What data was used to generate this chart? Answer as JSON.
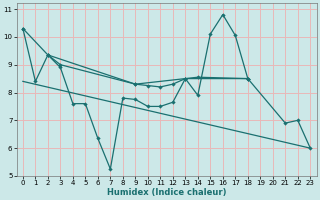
{
  "xlabel": "Humidex (Indice chaleur)",
  "background_color": "#cce8e8",
  "grid_color": "#e8b8b8",
  "line_color": "#1a7070",
  "xlim": [
    -0.5,
    23.5
  ],
  "ylim": [
    5,
    11.2
  ],
  "yticks": [
    5,
    6,
    7,
    8,
    9,
    10,
    11
  ],
  "xticks": [
    0,
    1,
    2,
    3,
    4,
    5,
    6,
    7,
    8,
    9,
    10,
    11,
    12,
    13,
    14,
    15,
    16,
    17,
    18,
    19,
    20,
    21,
    22,
    23
  ],
  "line1_x": [
    0,
    1,
    2,
    3,
    4,
    5,
    6,
    7,
    8,
    9,
    10,
    11,
    12,
    13,
    14,
    15,
    16,
    17,
    18
  ],
  "line1_y": [
    10.3,
    8.4,
    9.35,
    8.9,
    7.6,
    7.6,
    6.35,
    5.25,
    7.8,
    7.75,
    7.5,
    7.5,
    7.65,
    8.5,
    7.9,
    10.1,
    10.8,
    10.05,
    8.5
  ],
  "line2_x": [
    2,
    3,
    9,
    10,
    11,
    12,
    13,
    14,
    18
  ],
  "line2_y": [
    9.35,
    9.0,
    8.3,
    8.25,
    8.2,
    8.3,
    8.5,
    8.55,
    8.5
  ],
  "line3_x": [
    0,
    2,
    9,
    13,
    18,
    21,
    22,
    23
  ],
  "line3_y": [
    10.3,
    9.35,
    8.3,
    8.5,
    8.5,
    6.9,
    7.0,
    6.0
  ],
  "line4_x": [
    0,
    23
  ],
  "line4_y": [
    8.4,
    6.0
  ]
}
